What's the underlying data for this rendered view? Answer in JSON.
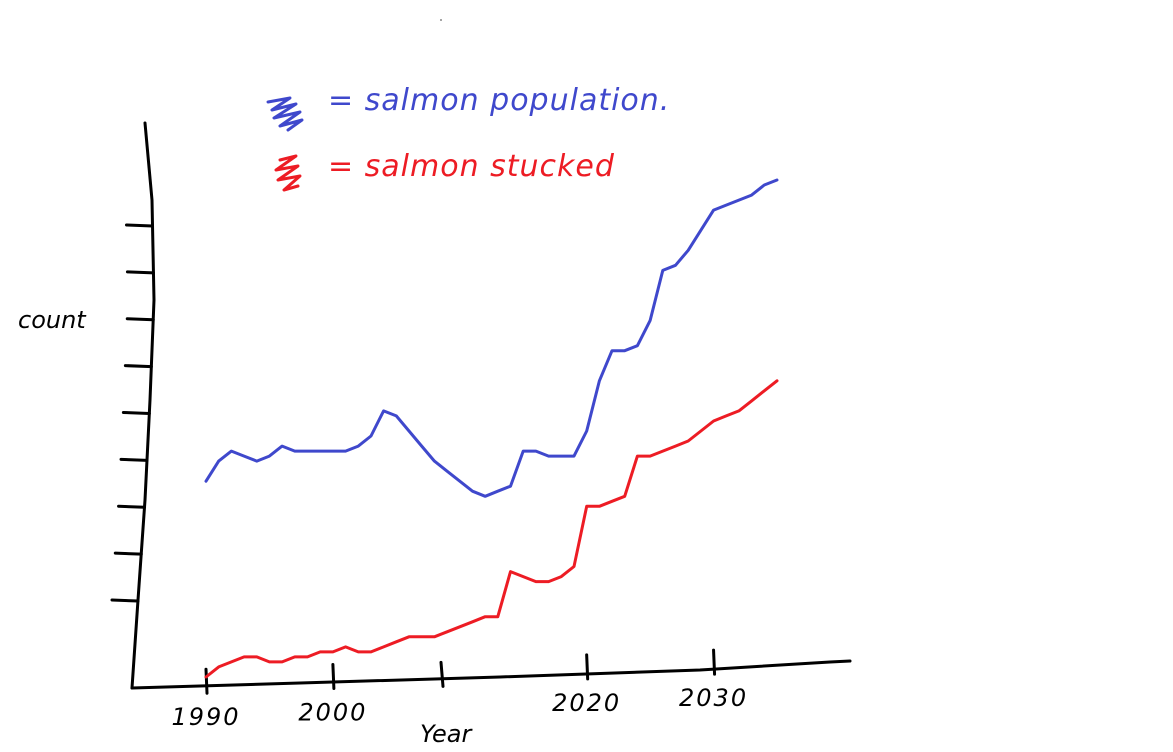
{
  "chart_data": {
    "type": "line",
    "title": "",
    "xlabel": "Year",
    "ylabel": "count",
    "x": [
      1990,
      1991,
      1992,
      1993,
      1994,
      1995,
      1996,
      1997,
      1998,
      1999,
      2000,
      2001,
      2002,
      2003,
      2004,
      2005,
      2006,
      2007,
      2008,
      2009,
      2010,
      2011,
      2012,
      2013,
      2014,
      2015,
      2016,
      2017,
      2018,
      2019,
      2020,
      2021,
      2022,
      2023,
      2024,
      2025,
      2026,
      2027,
      2028,
      2029,
      2030,
      2031,
      2032,
      2033,
      2034,
      2035
    ],
    "x_ticks": [
      1990,
      2000,
      2020,
      2030
    ],
    "x_tick_labels": [
      "1990",
      "2000",
      "2020",
      "2030"
    ],
    "xlim": [
      1985,
      2041
    ],
    "ylim": [
      0,
      100
    ],
    "y_ticks": 9,
    "grid": false,
    "legend_position": "top",
    "series": [
      {
        "name": "salmon population",
        "color": "#3f48cc",
        "values": [
          40,
          44,
          46,
          45,
          44,
          45,
          47,
          46,
          46,
          46,
          46,
          46,
          47,
          49,
          54,
          53,
          50,
          47,
          44,
          42,
          40,
          38,
          37,
          38,
          39,
          46,
          46,
          45,
          45,
          45,
          50,
          60,
          66,
          66,
          67,
          72,
          82,
          83,
          86,
          90,
          94,
          95,
          96,
          97,
          99,
          100
        ]
      },
      {
        "name": "salmon stocked",
        "color": "#ed1c24",
        "values": [
          1,
          3,
          4,
          5,
          5,
          4,
          4,
          5,
          5,
          6,
          6,
          7,
          6,
          6,
          7,
          8,
          9,
          9,
          9,
          10,
          11,
          12,
          13,
          13,
          22,
          21,
          20,
          20,
          21,
          23,
          35,
          35,
          36,
          37,
          45,
          45,
          46,
          47,
          48,
          50,
          52,
          53,
          54,
          56,
          58,
          60
        ]
      }
    ]
  },
  "legend": {
    "population_label": "= salmon population.",
    "stocked_label": "= salmon stucked"
  }
}
